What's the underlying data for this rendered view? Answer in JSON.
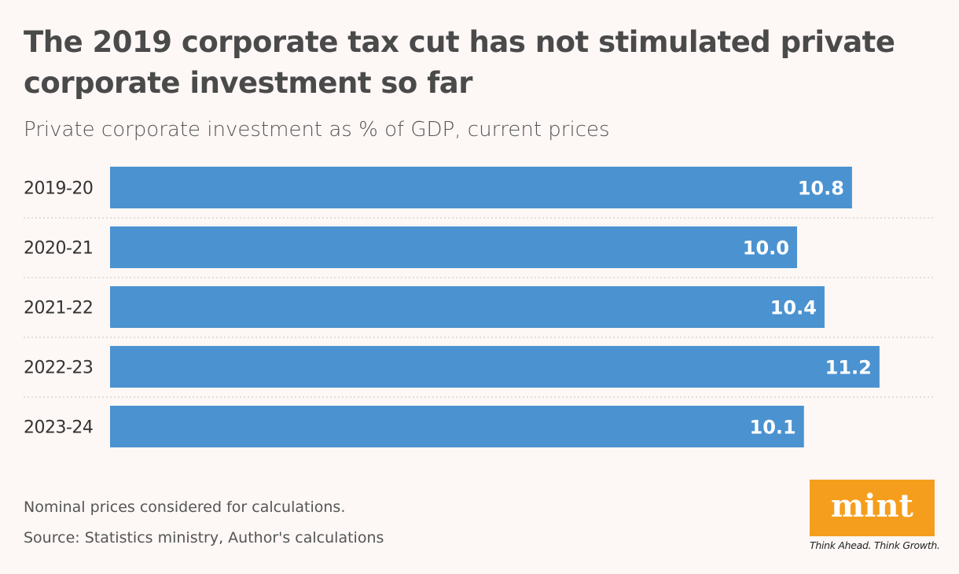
{
  "title": "The 2019 corporate tax cut has not stimulated private corporate investment so far",
  "subtitle": "Private corporate investment as % of GDP, current prices",
  "notes": [
    "Nominal prices considered for calculations.",
    "Source: Statistics ministry, Author's calculations"
  ],
  "logo": {
    "text": "mint",
    "tagline": "Think Ahead. Think Growth.",
    "color": "#f59e1e"
  },
  "colors": {
    "bar": "#4b92d0",
    "label": "#ffffff"
  },
  "chart_data": {
    "type": "bar",
    "orientation": "horizontal",
    "categories": [
      "2019-20",
      "2020-21",
      "2021-22",
      "2022-23",
      "2023-24"
    ],
    "values": [
      10.8,
      10.0,
      10.4,
      11.2,
      10.1
    ],
    "title": "The 2019 corporate tax cut has not stimulated private corporate investment so far",
    "subtitle": "Private corporate investment as % of GDP, current prices",
    "xlim": [
      0,
      12
    ],
    "grid": false,
    "data_labels": [
      "10.8",
      "10.0",
      "10.4",
      "11.2",
      "10.1"
    ]
  }
}
